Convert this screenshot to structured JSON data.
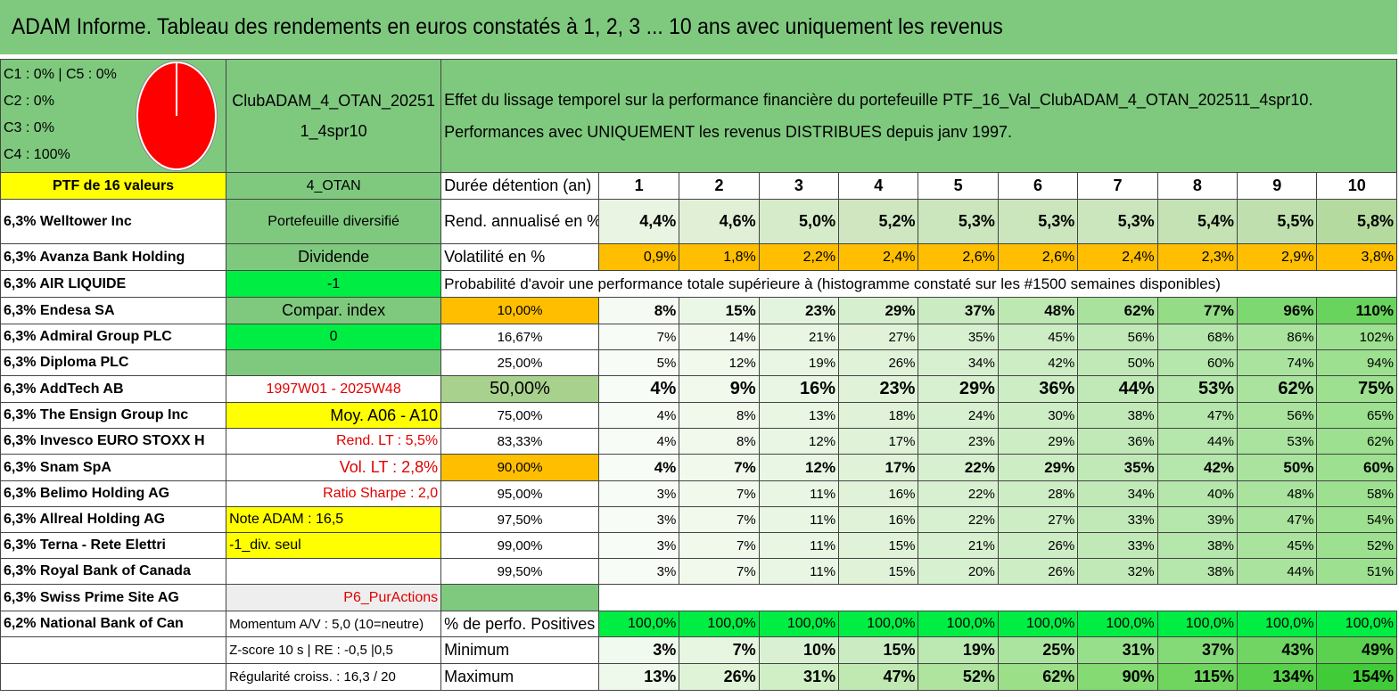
{
  "title": "ADAM Informe. Tableau des rendements en euros constatés à 1, 2, 3 ... 10 ans avec uniquement les revenus",
  "pie": {
    "legend": [
      "C1 : 0% | C5 : 0%",
      "C2 : 0%",
      "C3 : 0%",
      "C4 : 100%"
    ],
    "color": "#ff0000"
  },
  "header": {
    "portfolio_name": "ClubADAM_4_OTAN_20251 1_4spr10",
    "description_line1": "Effet du lissage temporel sur la performance financière du portefeuille PTF_16_Val_ClubADAM_4_OTAN_202511_4spr10.",
    "description_line2": "Performances avec UNIQUEMENT les revenus DISTRIBUES depuis janv 1997."
  },
  "ptf_label": "PTF de 16 valeurs",
  "strategy": "4_OTAN",
  "duration_label": "Durée détention (an)",
  "years": [
    "1",
    "2",
    "3",
    "4",
    "5",
    "6",
    "7",
    "8",
    "9",
    "10"
  ],
  "holdings": [
    "6,3% Welltower Inc",
    "6,3% Avanza Bank Holding",
    "6,3% AIR LIQUIDE",
    "6,3% Endesa SA",
    "6,3% Admiral Group PLC",
    "6,3% Diploma PLC",
    "6,3% AddTech AB",
    "6,3% The Ensign Group Inc",
    "6,3% Invesco EURO STOXX H",
    "6,3% Snam SpA",
    "6,3% Belimo Holding AG",
    "6,3% Allreal Holding AG",
    "6,3% Terna - Rete Elettri",
    "6,3% Royal Bank of Canada",
    "6,3% Swiss Prime Site AG",
    "6,2% National Bank of Can"
  ],
  "info": {
    "diversified": "Portefeuille diversifié",
    "dividend": "Dividende",
    "minus_one": "-1",
    "compar_index": "Compar. index",
    "zero": "0",
    "period": "1997W01 - 2025W48",
    "moy": "Moy. A06 - A10",
    "rend_lt": "Rend. LT : 5,5%",
    "vol_lt": "Vol. LT : 2,8%",
    "sharpe": "Ratio Sharpe : 2,0",
    "note": "Note ADAM : 16,5",
    "div_seul": "-1_div. seul",
    "puractions": "P6_PurActions",
    "momentum": "Momentum A/V : 5,0 (10=neutre)",
    "zscore": "Z-score 10 s | RE : -0,5 |0,5",
    "regularite": "Régularité croiss. : 16,3 / 20"
  },
  "rend": {
    "label": "Rend. annualisé en %",
    "values": [
      "4,4%",
      "4,6%",
      "5,0%",
      "5,2%",
      "5,3%",
      "5,3%",
      "5,3%",
      "5,4%",
      "5,5%",
      "5,8%"
    ]
  },
  "vol": {
    "label": "Volatilité en %",
    "values": [
      "0,9%",
      "1,8%",
      "2,2%",
      "2,4%",
      "2,6%",
      "2,6%",
      "2,4%",
      "2,3%",
      "2,9%",
      "3,8%"
    ]
  },
  "prob_title": "Probabilité d'avoir une performance totale supérieure à (histogramme constaté sur les #1500 semaines disponibles)",
  "prob_rows": [
    {
      "p": "10,00%",
      "v": [
        "8%",
        "15%",
        "23%",
        "29%",
        "37%",
        "48%",
        "62%",
        "77%",
        "96%",
        "110%"
      ]
    },
    {
      "p": "16,67%",
      "v": [
        "7%",
        "14%",
        "21%",
        "27%",
        "35%",
        "45%",
        "56%",
        "68%",
        "86%",
        "102%"
      ]
    },
    {
      "p": "25,00%",
      "v": [
        "5%",
        "12%",
        "19%",
        "26%",
        "34%",
        "42%",
        "50%",
        "60%",
        "74%",
        "94%"
      ]
    },
    {
      "p": "50,00%",
      "v": [
        "4%",
        "9%",
        "16%",
        "23%",
        "29%",
        "36%",
        "44%",
        "53%",
        "62%",
        "75%"
      ]
    },
    {
      "p": "75,00%",
      "v": [
        "4%",
        "8%",
        "13%",
        "18%",
        "24%",
        "30%",
        "38%",
        "47%",
        "56%",
        "65%"
      ]
    },
    {
      "p": "83,33%",
      "v": [
        "4%",
        "8%",
        "12%",
        "17%",
        "23%",
        "29%",
        "36%",
        "44%",
        "53%",
        "62%"
      ]
    },
    {
      "p": "90,00%",
      "v": [
        "4%",
        "7%",
        "12%",
        "17%",
        "22%",
        "29%",
        "35%",
        "42%",
        "50%",
        "60%"
      ]
    },
    {
      "p": "95,00%",
      "v": [
        "3%",
        "7%",
        "11%",
        "16%",
        "22%",
        "28%",
        "34%",
        "40%",
        "48%",
        "58%"
      ]
    },
    {
      "p": "97,50%",
      "v": [
        "3%",
        "7%",
        "11%",
        "16%",
        "22%",
        "27%",
        "33%",
        "39%",
        "47%",
        "54%"
      ]
    },
    {
      "p": "99,00%",
      "v": [
        "3%",
        "7%",
        "11%",
        "15%",
        "21%",
        "26%",
        "33%",
        "38%",
        "45%",
        "52%"
      ]
    },
    {
      "p": "99,50%",
      "v": [
        "3%",
        "7%",
        "11%",
        "15%",
        "20%",
        "26%",
        "32%",
        "38%",
        "44%",
        "51%"
      ]
    }
  ],
  "positives": {
    "label": "% de perfo. Positives",
    "values": [
      "100,0%",
      "100,0%",
      "100,0%",
      "100,0%",
      "100,0%",
      "100,0%",
      "100,0%",
      "100,0%",
      "100,0%",
      "100,0%"
    ]
  },
  "minimum": {
    "label": "Minimum",
    "values": [
      "3%",
      "7%",
      "10%",
      "15%",
      "19%",
      "25%",
      "31%",
      "37%",
      "43%",
      "49%"
    ]
  },
  "maximum": {
    "label": "Maximum",
    "values": [
      "13%",
      "26%",
      "31%",
      "47%",
      "52%",
      "62%",
      "90%",
      "115%",
      "134%",
      "154%"
    ]
  },
  "colors": {
    "header_green": "#7fc97f",
    "yellow": "#ffff00",
    "orange": "#ffbf00",
    "bright_green": "#00ee44",
    "pie_red": "#ff0000"
  }
}
